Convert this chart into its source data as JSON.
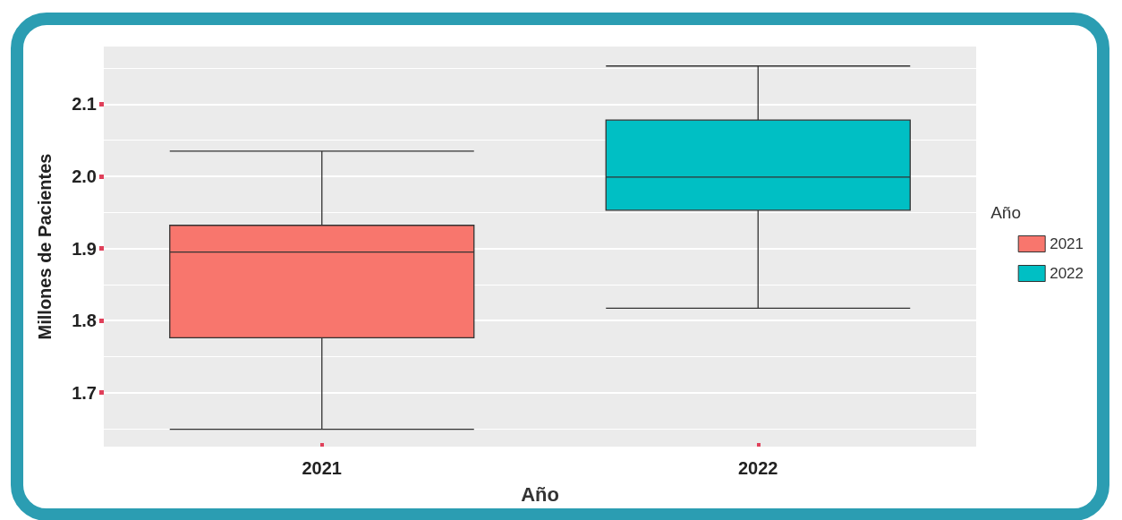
{
  "chart_data": {
    "type": "box",
    "xlabel": "Año",
    "ylabel": "Millones de Pacientes",
    "legend_title": "Año",
    "categories": [
      "2021",
      "2022"
    ],
    "series": [
      {
        "name": "2021",
        "color": "#f8766d",
        "boxes": [
          {
            "low": 1.649,
            "q1": 1.776,
            "median": 1.895,
            "q3": 1.932,
            "high": 2.035
          },
          null
        ]
      },
      {
        "name": "2022",
        "color": "#00bfc4",
        "boxes": [
          null,
          {
            "low": 1.817,
            "q1": 1.953,
            "median": 1.999,
            "q3": 2.078,
            "high": 2.153
          }
        ]
      }
    ],
    "ylim": [
      1.625,
      2.18
    ],
    "yticks": [
      1.7,
      1.8,
      1.9,
      {
        "value": 2,
        "label": "2.0"
      },
      2.1
    ],
    "grid": "y",
    "legend": "right"
  }
}
